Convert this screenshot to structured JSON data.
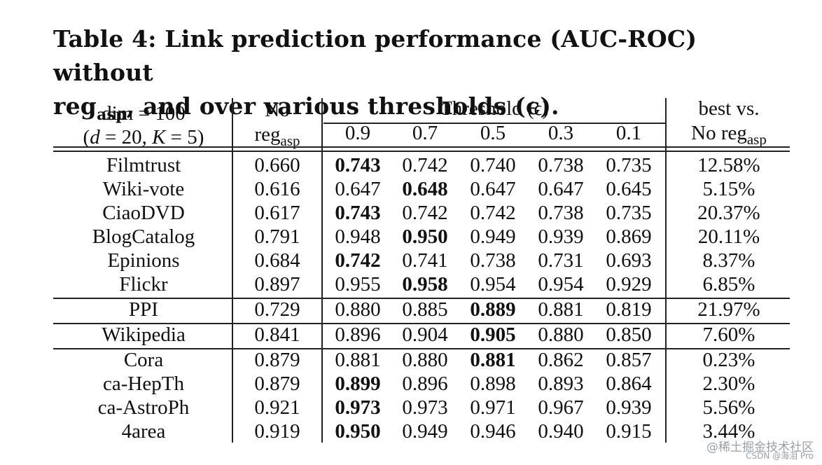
{
  "caption": {
    "prefix": "Table 4: Link prediction performance (AUC-ROC) without",
    "reg": "reg",
    "reg_sub": "asp",
    "suffix": ", and over various thresholds (ϵ)."
  },
  "header": {
    "dim_line1": "dim = 100",
    "dim_line2_open": "(",
    "dim_d": "d",
    "dim_mid": " = 20, ",
    "dim_K": "K",
    "dim_close": " = 5)",
    "no_line1": "No",
    "no_reg": "reg",
    "no_sub": "asp",
    "threshold_label": "Threshold (ϵ)",
    "thresholds": [
      "0.9",
      "0.7",
      "0.5",
      "0.3",
      "0.1"
    ],
    "best_line1": "best vs.",
    "best_line2": "No reg",
    "best_sub": "asp"
  },
  "rows": [
    {
      "name": "Filmtrust",
      "noreg": "0.660",
      "vals": [
        "0.743",
        "0.742",
        "0.740",
        "0.738",
        "0.735"
      ],
      "best": 0,
      "improve": "12.58%"
    },
    {
      "name": "Wiki-vote",
      "noreg": "0.616",
      "vals": [
        "0.647",
        "0.648",
        "0.647",
        "0.647",
        "0.645"
      ],
      "best": 1,
      "improve": "5.15%"
    },
    {
      "name": "CiaoDVD",
      "noreg": "0.617",
      "vals": [
        "0.743",
        "0.742",
        "0.742",
        "0.738",
        "0.735"
      ],
      "best": 0,
      "improve": "20.37%"
    },
    {
      "name": "BlogCatalog",
      "noreg": "0.791",
      "vals": [
        "0.948",
        "0.950",
        "0.949",
        "0.939",
        "0.869"
      ],
      "best": 1,
      "improve": "20.11%"
    },
    {
      "name": "Epinions",
      "noreg": "0.684",
      "vals": [
        "0.742",
        "0.741",
        "0.738",
        "0.731",
        "0.693"
      ],
      "best": 0,
      "improve": "8.37%"
    },
    {
      "name": "Flickr",
      "noreg": "0.897",
      "vals": [
        "0.955",
        "0.958",
        "0.954",
        "0.954",
        "0.929"
      ],
      "best": 1,
      "improve": "6.85%"
    },
    {
      "name": "PPI",
      "noreg": "0.729",
      "vals": [
        "0.880",
        "0.885",
        "0.889",
        "0.881",
        "0.819"
      ],
      "best": 2,
      "improve": "21.97%"
    },
    {
      "name": "Wikipedia",
      "noreg": "0.841",
      "vals": [
        "0.896",
        "0.904",
        "0.905",
        "0.880",
        "0.850"
      ],
      "best": 2,
      "improve": "7.60%"
    },
    {
      "name": "Cora",
      "noreg": "0.879",
      "vals": [
        "0.881",
        "0.880",
        "0.881",
        "0.862",
        "0.857"
      ],
      "best": 2,
      "improve": "0.23%"
    },
    {
      "name": "ca-HepTh",
      "noreg": "0.879",
      "vals": [
        "0.899",
        "0.896",
        "0.898",
        "0.893",
        "0.864"
      ],
      "best": 0,
      "improve": "2.30%"
    },
    {
      "name": "ca-AstroPh",
      "noreg": "0.921",
      "vals": [
        "0.973",
        "0.973",
        "0.971",
        "0.967",
        "0.939"
      ],
      "best": 0,
      "improve": "5.56%"
    },
    {
      "name": "4area",
      "noreg": "0.919",
      "vals": [
        "0.950",
        "0.949",
        "0.946",
        "0.940",
        "0.915"
      ],
      "best": 0,
      "improve": "3.44%"
    }
  ],
  "watermark": {
    "line1": "@稀土掘金技术社区",
    "line2": "CSDN @海泪 Pro"
  }
}
